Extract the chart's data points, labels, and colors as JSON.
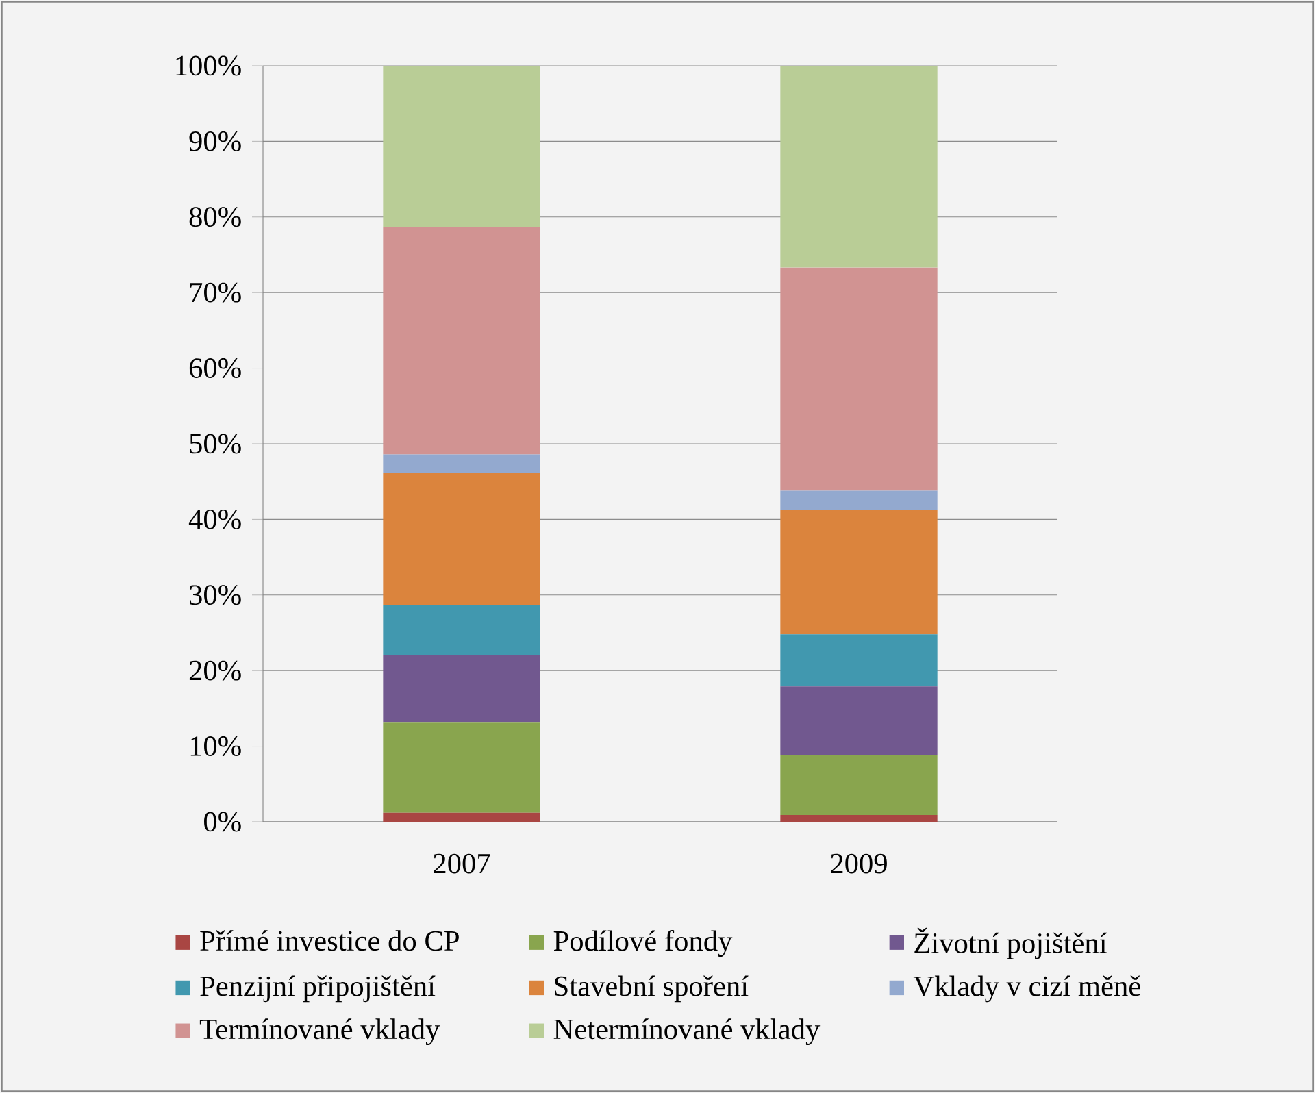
{
  "chart_data": {
    "type": "bar",
    "stacked": true,
    "categories": [
      "2007",
      "2009"
    ],
    "series": [
      {
        "name": "Přímé investice do CP",
        "color": "#a94643",
        "values": [
          1.2,
          0.9
        ]
      },
      {
        "name": "Podílové fondy",
        "color": "#89a54e",
        "values": [
          12.0,
          7.9
        ]
      },
      {
        "name": "Životní pojištění",
        "color": "#71588f",
        "values": [
          8.8,
          9.1
        ]
      },
      {
        "name": "Penzijní připojištění",
        "color": "#4198af",
        "values": [
          6.7,
          6.9
        ]
      },
      {
        "name": "Stavební spoření",
        "color": "#db843d",
        "values": [
          17.4,
          16.5
        ]
      },
      {
        "name": "Vklady v cizí měně",
        "color": "#93a9cf",
        "values": [
          2.5,
          2.5
        ]
      },
      {
        "name": "Termínované vklady",
        "color": "#d19392",
        "values": [
          30.1,
          29.5
        ]
      },
      {
        "name": "Netermínované vklady",
        "color": "#b9cd96",
        "values": [
          21.3,
          26.7
        ]
      }
    ],
    "ylim": [
      0,
      100
    ],
    "yticks": [
      {
        "value": 0,
        "label": "0%"
      },
      {
        "value": 10,
        "label": "10%"
      },
      {
        "value": 20,
        "label": "20%"
      },
      {
        "value": 30,
        "label": "30%"
      },
      {
        "value": 40,
        "label": "40%"
      },
      {
        "value": 50,
        "label": "50%"
      },
      {
        "value": 60,
        "label": "60%"
      },
      {
        "value": 70,
        "label": "70%"
      },
      {
        "value": 80,
        "label": "80%"
      },
      {
        "value": 90,
        "label": "90%"
      },
      {
        "value": 100,
        "label": "100%"
      }
    ],
    "grid": "y",
    "legend": "bottom"
  }
}
